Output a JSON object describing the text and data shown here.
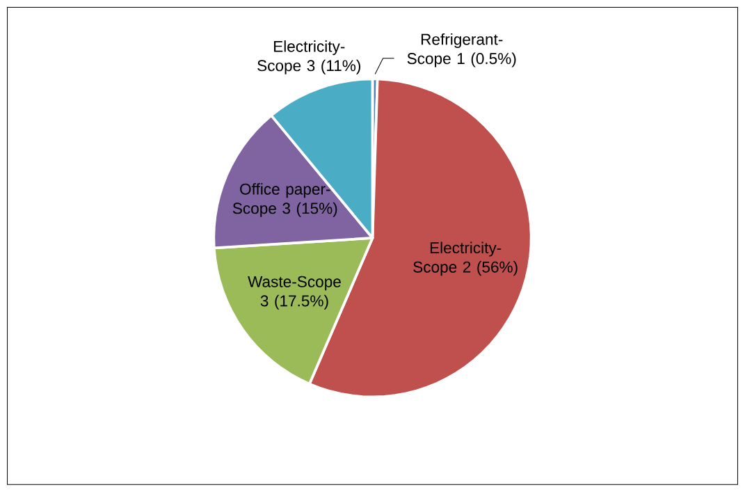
{
  "chart_data": {
    "type": "pie",
    "categories": [
      "Refrigerant-Scope 1",
      "Electricity-Scope 2",
      "Waste-Scope 3",
      "Office paper-Scope 3",
      "Electricity-Scope 3"
    ],
    "values": [
      0.5,
      56,
      17.5,
      15,
      11
    ],
    "value_labels": [
      "(0.5%)",
      "(56%)",
      "(17.5%)",
      "(15%)",
      "(11%)"
    ],
    "colors": [
      "#4f81bd",
      "#c0504d",
      "#9bbb59",
      "#8064a2",
      "#4bacc6"
    ]
  }
}
